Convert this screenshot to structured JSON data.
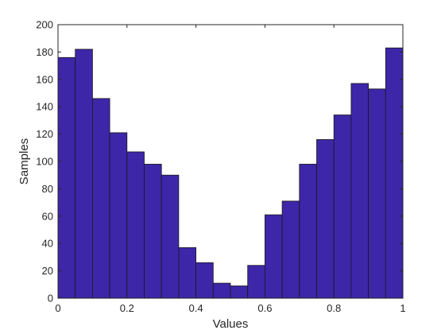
{
  "chart_data": {
    "type": "bar",
    "subtype": "histogram",
    "title": "",
    "xlabel": "Values",
    "ylabel": "Samples",
    "xlim": [
      0,
      1
    ],
    "ylim": [
      0,
      200
    ],
    "bin_edges": [
      0,
      0.05,
      0.1,
      0.15,
      0.2,
      0.25,
      0.3,
      0.35,
      0.4,
      0.45,
      0.5,
      0.55,
      0.6,
      0.65,
      0.7,
      0.75,
      0.8,
      0.85,
      0.9,
      0.95,
      1.0
    ],
    "values": [
      176,
      182,
      146,
      121,
      107,
      98,
      90,
      37,
      26,
      11,
      9,
      24,
      61,
      71,
      98,
      116,
      134,
      157,
      153,
      183
    ],
    "x_ticks": [
      0,
      0.2,
      0.4,
      0.6,
      0.8,
      1
    ],
    "x_tick_labels": [
      "0",
      "0.2",
      "0.4",
      "0.6",
      "0.8",
      "1"
    ],
    "y_ticks": [
      0,
      20,
      40,
      60,
      80,
      100,
      120,
      140,
      160,
      180,
      200
    ],
    "y_tick_labels": [
      "0",
      "20",
      "40",
      "60",
      "80",
      "100",
      "120",
      "140",
      "160",
      "180",
      "200"
    ],
    "grid": false,
    "legend": "none",
    "bar_color": "#3d26a8",
    "edge_color": "#1a1a1a",
    "axis_color": "#262626"
  }
}
